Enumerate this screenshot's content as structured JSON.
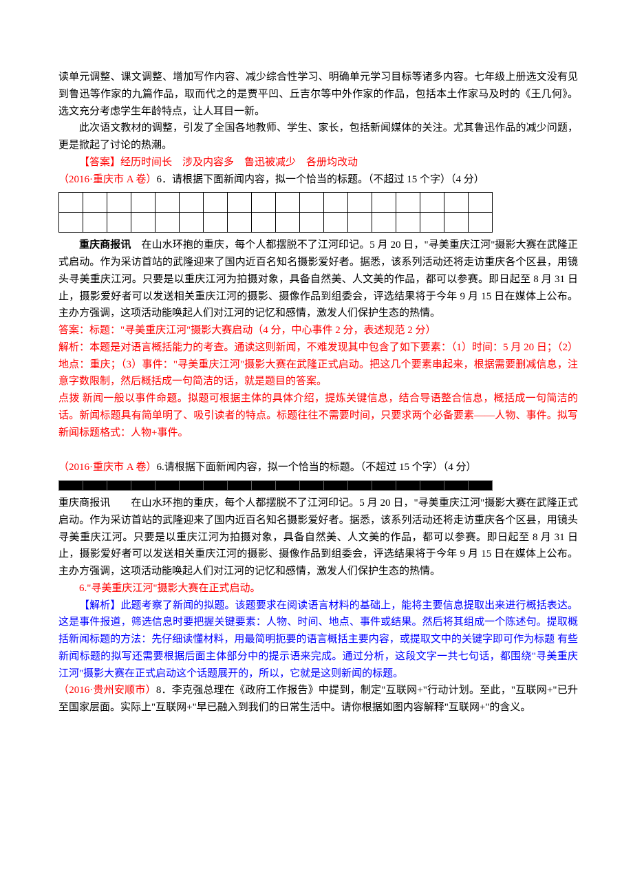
{
  "p1": "读单元调整、课文调整、增加写作内容、减少综合性学习、明确单元学习目标等诸多内容。七年级上册选文没有见到鲁迅等作家的九篇作品，取而代之的是贾平凹、丘吉尔等中外作家的作品，包括本土作家马及时的《王几何》。选文充分考虑学生年龄特点，让人耳目一新。",
  "p2": "此次语文教材的调整，引发了全国各地教师、学生、家长，包括新闻媒体的关注。尤其鲁迅作品的减少问题，更是掀起了讨论的热潮。",
  "answer1_label": "【答案】",
  "answer1": "经历时间长　涉及内容多　鲁迅被减少　各册均改动",
  "source1": "（2016·重庆市 A 卷）",
  "q1": "6．请根据下面新闻内容，拟一个恰当的标题。（不超过 15 个字）（4 分）",
  "grid1": {
    "rows": 2,
    "cols": 18
  },
  "news_label": "重庆商报讯",
  "news1": "　在山水环抱的重庆，每个人都摆脱不了江河印记。5 月 20 日，\"寻美重庆江河\"摄影大赛在武隆正式启动。作为采访首站的武隆迎来了国内近百名知名摄影爱好者。据悉，该系列活动还将走访重庆各个区县，用镜头寻美重庆江河。只要是以重庆江河为拍摄对象，具备自然美、人文美的作品，都可以参赛。即日起至 8 月 31 日止，摄影爱好者可以发送相关重庆江河的摄影、摄像作品到组委会，评选结果将于今年 9 月 15 日在媒体上公布。主办方强调，这项活动能唤起人们对江河的记忆和感情，激发人们保护生态的热情。",
  "a1_title": "答案：标题：\"寻美重庆江河\"摄影大赛启动（4 分，中心事件 2 分，表述规范 2 分）",
  "a1_analysis": "解析：本题是对语言概括能力的考查。通读这则新闻，不难发现其中包含了如下要素：（1）时间：5 月 20 日；（2）地点：重庆；（3）事件：\"寻美重庆江河\"摄影大赛在武隆正式启动。把这几个要素串起来，根据需要删减信息，注意字数限制，然后概括成一句简洁的话，就是题目的答案。",
  "a1_tip": "点拨 新闻一般以事件命题。拟题可根据主体的具体介绍，提炼关键信息，结合导语整合信息，概括成一句简洁的话。新闻标题具有简单明了、吸引读者的特点。标题往往不需要时间，只要求两个必备要素——人物、事件。拟写新闻标题格式：人物+事件。",
  "source2": "（2016·重庆市 A 卷）",
  "q2": "6.请根据下面新闻内容，拟一个恰当的标题。（不超过 15 个字）（4 分）",
  "grid2": {
    "rows": 1,
    "cols": 18
  },
  "news2_label": "重庆商报讯",
  "news2": "　　在山水环抱的重庆，每个人都摆脱不了江河印记。5 月 20 日，\"寻美重庆江河\"摄影大赛在武隆正式启动。作为采访首站的武隆迎来了国内近百名知名摄影爱好者。据悉，该系列活动还将走访重庆各个区县，用镜头寻美重庆江河。只要是以重庆江河为拍摄对象，具备自然美、人文美的作品，都可以参赛。即日起至 8 月 31 日止，摄影爱好者可以发送相关重庆江河的摄影、摄像作品到组委会，评选结果将于今年 9 月 15 日在媒体上公布。主办方强调，这项活动能唤起人们对江河的记忆和感情，激发人们保护生态的热情。",
  "a2": "6.\"寻美重庆江河\"摄影大赛在正式启动。",
  "a2_analysis_label": "【解析】",
  "a2_analysis": "此题考察了新闻的拟题。该题要求在阅读语言材料的基础上，能将主要信息提取出来进行概括表达。这是事件报道，筛选信息时要把握关键要素：人物、时间、地点、事件或结果。然后将其组成一个陈述句。提取概括新闻标题的方法：先仔细读懂材料，用最简明扼要的语言概括主要内容，或提取文中的关键字即可作为标题 有些新闻标题的拟写还需要根据后面主体部分中的提示语来完成。通过分析，这段文字一共七句话，都围绕\"寻美重庆江河\"摄影大赛在正式启动这个话题展开的，所以，它就是这则新闻的标题。",
  "source3": "（2016·贵州安顺市）",
  "q3": "8．李克强总理在《政府工作报告》中提到，制定\"互联网+\"行动计划。至此，\"互联网+\"已升至国家层面。实际上\"互联网+\"早已融入到我们的日常生活中。请你根据如图内容解释\"互联网+\"的含义。"
}
